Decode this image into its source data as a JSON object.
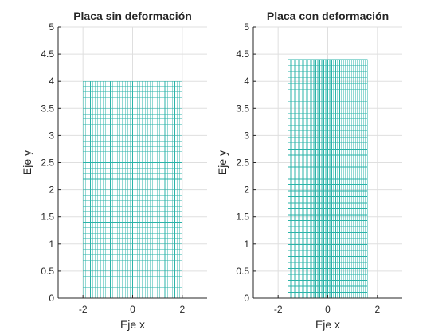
{
  "chart_data": [
    {
      "type": "mesh",
      "title": "Placa sin deformación",
      "xlabel": "Eje x",
      "ylabel": "Eje y",
      "xlim": [
        -3,
        3
      ],
      "ylim": [
        0,
        5
      ],
      "xticks": [
        -2,
        0,
        2
      ],
      "xtick_labels": [
        "-2",
        "0",
        "2"
      ],
      "yticks": [
        0,
        0.5,
        1,
        1.5,
        2,
        2.5,
        3,
        3.5,
        4,
        4.5,
        5
      ],
      "ytick_labels": [
        "0",
        "0.5",
        "1",
        "1.5",
        "2",
        "2.5",
        "3",
        "3.5",
        "4",
        "4.5",
        "5"
      ],
      "grid": true,
      "plate": {
        "x_min": -2,
        "x_max": 2,
        "y_min": 0,
        "y_max": 4
      },
      "mesh": {
        "columns": 40,
        "rows": 40
      },
      "color": "#2ab3a8"
    },
    {
      "type": "mesh",
      "title": "Placa con deformación",
      "xlabel": "Eje x",
      "ylabel": "Eje y",
      "xlim": [
        -3,
        3
      ],
      "ylim": [
        0,
        5
      ],
      "xticks": [
        -2,
        0,
        2
      ],
      "xtick_labels": [
        "-2",
        "0",
        "2"
      ],
      "yticks": [
        0,
        0.5,
        1,
        1.5,
        2,
        2.5,
        3,
        3.5,
        4,
        4.5,
        5
      ],
      "ytick_labels": [
        "0",
        "0.5",
        "1",
        "1.5",
        "2",
        "2.5",
        "3",
        "3.5",
        "4",
        "4.5",
        "5"
      ],
      "grid": true,
      "plate": {
        "x_min": -1.6,
        "x_max": 1.6,
        "y_min": 0,
        "y_max": 4.4
      },
      "mesh": {
        "columns": 40,
        "rows": 40
      },
      "color": "#2ab3a8"
    }
  ],
  "colors": {
    "axis": "#262626",
    "grid": "#dfdfdf",
    "mesh": "#2ab3a8"
  }
}
